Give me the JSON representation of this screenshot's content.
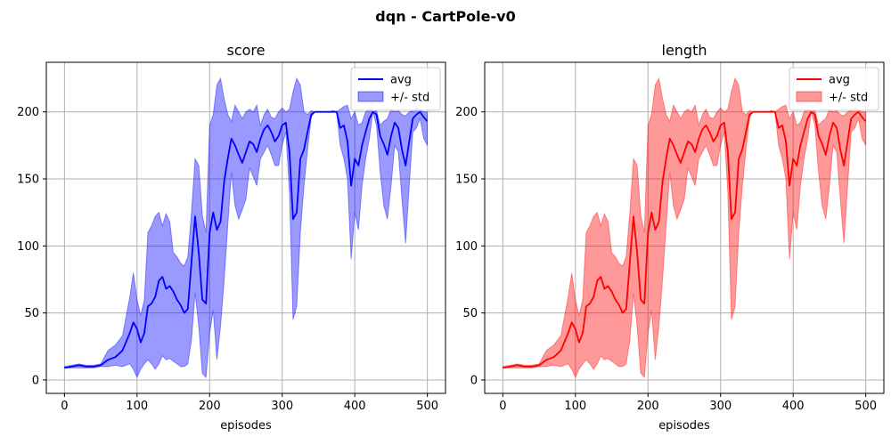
{
  "figure": {
    "suptitle": "dqn - CartPole-v0"
  },
  "chart_data": [
    {
      "type": "line",
      "title": "score",
      "xlabel": "episodes",
      "ylabel": "",
      "xlim": [
        -25,
        525
      ],
      "ylim": [
        -10,
        237
      ],
      "xticks": [
        0,
        100,
        200,
        300,
        400,
        500
      ],
      "yticks": [
        0,
        50,
        100,
        150,
        200
      ],
      "grid": true,
      "legend": {
        "placement": "top-right",
        "entries": [
          "avg",
          "+/- std"
        ]
      },
      "colors": {
        "line": "#0000ff",
        "fill": "#0000ff",
        "fill_alpha": 0.4
      },
      "x": [
        0,
        10,
        20,
        30,
        40,
        50,
        60,
        70,
        80,
        90,
        95,
        100,
        105,
        110,
        115,
        120,
        125,
        130,
        135,
        140,
        145,
        150,
        155,
        160,
        165,
        170,
        175,
        180,
        185,
        190,
        195,
        200,
        205,
        210,
        215,
        220,
        225,
        230,
        235,
        240,
        245,
        250,
        255,
        260,
        265,
        270,
        275,
        280,
        285,
        290,
        295,
        300,
        305,
        310,
        315,
        320,
        325,
        330,
        335,
        340,
        345,
        350,
        355,
        360,
        365,
        370,
        375,
        380,
        385,
        390,
        395,
        400,
        405,
        410,
        415,
        420,
        425,
        430,
        435,
        440,
        445,
        450,
        455,
        460,
        465,
        470,
        475,
        480,
        485,
        490,
        495,
        500
      ],
      "series": [
        {
          "name": "avg",
          "values": [
            9,
            10,
            11,
            10,
            10,
            11,
            15,
            17,
            22,
            35,
            43,
            38,
            28,
            35,
            55,
            57,
            62,
            74,
            77,
            68,
            70,
            66,
            60,
            56,
            50,
            53,
            88,
            122,
            95,
            60,
            57,
            110,
            125,
            112,
            118,
            148,
            165,
            180,
            175,
            168,
            162,
            170,
            178,
            176,
            170,
            180,
            187,
            190,
            185,
            178,
            182,
            190,
            192,
            170,
            120,
            125,
            165,
            172,
            185,
            198,
            200,
            200,
            200,
            200,
            200,
            200,
            200,
            188,
            190,
            178,
            145,
            165,
            160,
            175,
            185,
            195,
            200,
            198,
            182,
            176,
            168,
            182,
            192,
            188,
            172,
            160,
            178,
            195,
            198,
            200,
            196,
            193
          ]
        },
        {
          "name": "upper",
          "values": [
            10,
            11,
            12,
            11,
            11,
            12,
            22,
            26,
            33,
            62,
            80,
            60,
            48,
            60,
            110,
            115,
            122,
            125,
            115,
            124,
            118,
            95,
            92,
            87,
            85,
            92,
            125,
            165,
            160,
            123,
            110,
            190,
            198,
            220,
            225,
            210,
            198,
            193,
            205,
            200,
            195,
            200,
            202,
            200,
            205,
            190,
            198,
            202,
            196,
            195,
            200,
            203,
            200,
            202,
            215,
            225,
            220,
            200,
            198,
            201,
            200,
            200,
            200,
            200,
            200,
            201,
            200,
            202,
            204,
            205,
            195,
            200,
            190,
            192,
            200,
            203,
            200,
            201,
            190,
            193,
            195,
            202,
            200,
            201,
            198,
            197,
            200,
            201,
            203,
            201,
            200,
            200
          ]
        },
        {
          "name": "lower",
          "values": [
            9,
            9,
            9,
            9,
            9,
            10,
            10,
            11,
            10,
            12,
            8,
            2,
            8,
            12,
            15,
            12,
            8,
            12,
            18,
            15,
            16,
            14,
            12,
            10,
            10,
            12,
            30,
            65,
            40,
            5,
            2,
            35,
            52,
            15,
            40,
            75,
            115,
            155,
            130,
            120,
            127,
            135,
            158,
            152,
            145,
            165,
            170,
            175,
            168,
            160,
            160,
            175,
            185,
            140,
            45,
            55,
            110,
            145,
            172,
            196,
            200,
            200,
            200,
            200,
            200,
            200,
            200,
            175,
            165,
            150,
            90,
            125,
            112,
            145,
            165,
            180,
            200,
            190,
            155,
            130,
            120,
            145,
            175,
            170,
            135,
            102,
            145,
            185,
            188,
            195,
            180,
            175
          ]
        }
      ]
    },
    {
      "type": "line",
      "title": "length",
      "xlabel": "episodes",
      "ylabel": "",
      "xlim": [
        -25,
        525
      ],
      "ylim": [
        -10,
        237
      ],
      "xticks": [
        0,
        100,
        200,
        300,
        400,
        500
      ],
      "yticks": [
        0,
        50,
        100,
        150,
        200
      ],
      "grid": true,
      "legend": {
        "placement": "top-right",
        "entries": [
          "avg",
          "+/- std"
        ]
      },
      "colors": {
        "line": "#ff0000",
        "fill": "#ff0000",
        "fill_alpha": 0.4
      },
      "x": [
        0,
        10,
        20,
        30,
        40,
        50,
        60,
        70,
        80,
        90,
        95,
        100,
        105,
        110,
        115,
        120,
        125,
        130,
        135,
        140,
        145,
        150,
        155,
        160,
        165,
        170,
        175,
        180,
        185,
        190,
        195,
        200,
        205,
        210,
        215,
        220,
        225,
        230,
        235,
        240,
        245,
        250,
        255,
        260,
        265,
        270,
        275,
        280,
        285,
        290,
        295,
        300,
        305,
        310,
        315,
        320,
        325,
        330,
        335,
        340,
        345,
        350,
        355,
        360,
        365,
        370,
        375,
        380,
        385,
        390,
        395,
        400,
        405,
        410,
        415,
        420,
        425,
        430,
        435,
        440,
        445,
        450,
        455,
        460,
        465,
        470,
        475,
        480,
        485,
        490,
        495,
        500
      ],
      "series": [
        {
          "name": "avg",
          "values": [
            9,
            10,
            11,
            10,
            10,
            11,
            15,
            17,
            22,
            35,
            43,
            38,
            28,
            35,
            55,
            57,
            62,
            74,
            77,
            68,
            70,
            66,
            60,
            56,
            50,
            53,
            88,
            122,
            95,
            60,
            57,
            110,
            125,
            112,
            118,
            148,
            165,
            180,
            175,
            168,
            162,
            170,
            178,
            176,
            170,
            180,
            187,
            190,
            185,
            178,
            182,
            190,
            192,
            170,
            120,
            125,
            165,
            172,
            185,
            198,
            200,
            200,
            200,
            200,
            200,
            200,
            200,
            188,
            190,
            178,
            145,
            165,
            160,
            175,
            185,
            195,
            200,
            198,
            182,
            176,
            168,
            182,
            192,
            188,
            172,
            160,
            178,
            195,
            198,
            200,
            196,
            193
          ]
        },
        {
          "name": "upper",
          "values": [
            10,
            11,
            12,
            11,
            11,
            12,
            22,
            26,
            33,
            62,
            80,
            60,
            48,
            60,
            110,
            115,
            122,
            125,
            115,
            124,
            118,
            95,
            92,
            87,
            85,
            92,
            125,
            165,
            160,
            123,
            110,
            190,
            198,
            220,
            225,
            210,
            198,
            193,
            205,
            200,
            195,
            200,
            202,
            200,
            205,
            190,
            198,
            202,
            196,
            195,
            200,
            203,
            200,
            202,
            215,
            225,
            220,
            200,
            198,
            201,
            200,
            200,
            200,
            200,
            200,
            201,
            200,
            202,
            204,
            205,
            195,
            200,
            190,
            192,
            200,
            203,
            200,
            201,
            190,
            193,
            195,
            202,
            200,
            201,
            198,
            197,
            200,
            201,
            203,
            201,
            200,
            200
          ]
        },
        {
          "name": "lower",
          "values": [
            9,
            9,
            9,
            9,
            9,
            10,
            10,
            11,
            10,
            12,
            8,
            2,
            8,
            12,
            15,
            12,
            8,
            12,
            18,
            15,
            16,
            14,
            12,
            10,
            10,
            12,
            30,
            65,
            40,
            5,
            2,
            35,
            52,
            15,
            40,
            75,
            115,
            155,
            130,
            120,
            127,
            135,
            158,
            152,
            145,
            165,
            170,
            175,
            168,
            160,
            160,
            175,
            185,
            140,
            45,
            55,
            110,
            145,
            172,
            196,
            200,
            200,
            200,
            200,
            200,
            200,
            200,
            175,
            165,
            150,
            90,
            125,
            112,
            145,
            165,
            180,
            200,
            190,
            155,
            130,
            120,
            145,
            175,
            170,
            135,
            102,
            145,
            185,
            188,
            195,
            180,
            175
          ]
        }
      ]
    }
  ]
}
